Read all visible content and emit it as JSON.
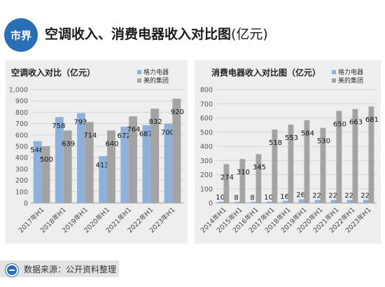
{
  "header": {
    "logo_text": "市界",
    "title": "空调收入、消费电器收入对比图",
    "title_unit": "(亿元)"
  },
  "source_text": "数据来源：公开资料整理",
  "colors": {
    "gree": "#8fb0d9",
    "midea": "#a3a3a3",
    "brand": "#2a6fb5"
  },
  "chart_data": [
    {
      "type": "bar",
      "title": "空调收入对比（亿元）",
      "categories": [
        "2017年H1",
        "2018年H1",
        "2019年H1",
        "2020年H1",
        "2021年H1",
        "2022年H1",
        "2023年H1"
      ],
      "series": [
        {
          "name": "格力电器",
          "values": [
            546,
            758,
            793,
            413,
            672,
            687,
            700
          ]
        },
        {
          "name": "美的集团",
          "values": [
            500,
            639,
            714,
            640,
            764,
            832,
            920
          ]
        }
      ],
      "ylim": [
        0,
        1000
      ],
      "yticks": [
        "0",
        "100",
        "200",
        "300",
        "400",
        "500",
        "600",
        "700",
        "800",
        "900",
        "1,000"
      ],
      "grid": true,
      "legend": "top-right"
    },
    {
      "type": "bar",
      "title": "消费电器收入对比图（亿元）",
      "categories": [
        "2014年H1",
        "2015年H1",
        "2016年H1",
        "2017年H1",
        "2018年H1",
        "2019年H1",
        "2020年H1",
        "2021年H1",
        "2022年H1",
        "2023年H1"
      ],
      "series": [
        {
          "name": "格力电器",
          "values": [
            10,
            8,
            8,
            10,
            16,
            26,
            22,
            22,
            22,
            22
          ]
        },
        {
          "name": "美的集团",
          "values": [
            274,
            310,
            345,
            518,
            553,
            584,
            530,
            650,
            663,
            681
          ]
        }
      ],
      "ylim": [
        0,
        800
      ],
      "yticks": [
        "0",
        "100",
        "200",
        "300",
        "400",
        "500",
        "600",
        "700",
        "800"
      ],
      "grid": true,
      "legend": "top-right"
    }
  ]
}
